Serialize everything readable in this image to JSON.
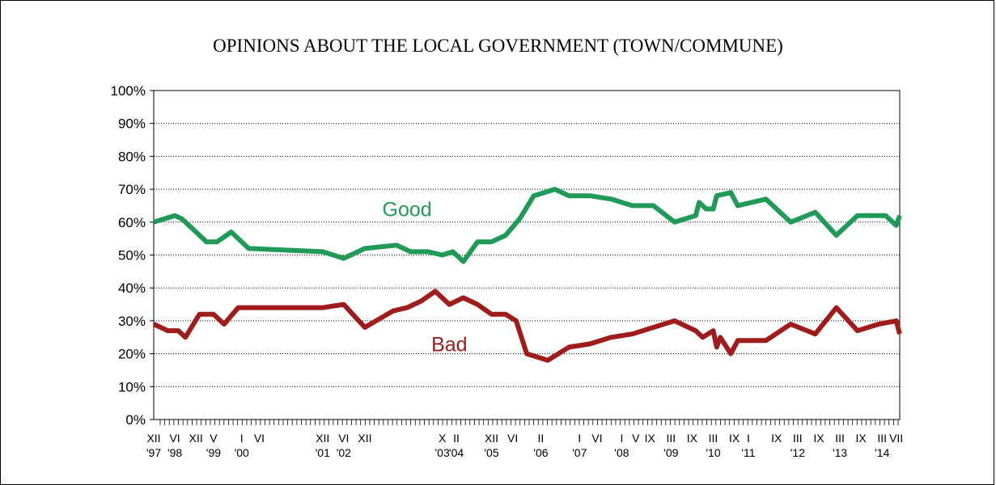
{
  "chart_data": {
    "type": "line",
    "title": "OPINIONS ABOUT THE LOCAL GOVERNMENT (TOWN/COMMUNE)",
    "ylim": [
      0,
      100
    ],
    "y_ticks": [
      "0%",
      "10%",
      "20%",
      "30%",
      "40%",
      "50%",
      "60%",
      "70%",
      "80%",
      "90%",
      "100%"
    ],
    "grid": "horizontal dotted",
    "x_tick_count": 163,
    "x_labels_row1": [
      {
        "t": "XII",
        "i": 0
      },
      {
        "t": "VI",
        "i": 6
      },
      {
        "t": "XII",
        "i": 12
      },
      {
        "t": "V",
        "i": 17
      },
      {
        "t": "I",
        "i": 25
      },
      {
        "t": "VI",
        "i": 30
      },
      {
        "t": "XII",
        "i": 48
      },
      {
        "t": "VI",
        "i": 54
      },
      {
        "t": "XII",
        "i": 60
      },
      {
        "t": "X",
        "i": 82
      },
      {
        "t": "II",
        "i": 86
      },
      {
        "t": "XII",
        "i": 96
      },
      {
        "t": "VI",
        "i": 102
      },
      {
        "t": "II",
        "i": 110
      },
      {
        "t": "I",
        "i": 121
      },
      {
        "t": "VI",
        "i": 126
      },
      {
        "t": "I",
        "i": 133
      },
      {
        "t": "V",
        "i": 137
      },
      {
        "t": "IX",
        "i": 141
      },
      {
        "t": "III",
        "i": 147
      },
      {
        "t": "IX",
        "i": 153
      },
      {
        "t": "III",
        "i": 159
      },
      {
        "t": "IX",
        "i": 165
      },
      {
        "t": "I",
        "i": 169
      },
      {
        "t": "IX",
        "i": 177
      },
      {
        "t": "III",
        "i": 183
      },
      {
        "t": "IX",
        "i": 189
      },
      {
        "t": "III",
        "i": 195
      },
      {
        "t": "IX",
        "i": 201
      },
      {
        "t": "III",
        "i": 207
      },
      {
        "t": "VII",
        "i": 211
      }
    ],
    "x_labels_row2": [
      {
        "t": "'97",
        "i": 0
      },
      {
        "t": "'98",
        "i": 6
      },
      {
        "t": "'99",
        "i": 17
      },
      {
        "t": "'00",
        "i": 25
      },
      {
        "t": "'01",
        "i": 48
      },
      {
        "t": "'02",
        "i": 54
      },
      {
        "t": "'03",
        "i": 82
      },
      {
        "t": "'04",
        "i": 86
      },
      {
        "t": "'05",
        "i": 96
      },
      {
        "t": "'06",
        "i": 110
      },
      {
        "t": "'07",
        "i": 121
      },
      {
        "t": "'08",
        "i": 133
      },
      {
        "t": "'09",
        "i": 147
      },
      {
        "t": "'10",
        "i": 159
      },
      {
        "t": "'11",
        "i": 169
      },
      {
        "t": "'12",
        "i": 183
      },
      {
        "t": "'13",
        "i": 195
      },
      {
        "t": "'14",
        "i": 207
      }
    ],
    "series": [
      {
        "name": "Good",
        "color": "#1f9a57",
        "points": [
          [
            0,
            60
          ],
          [
            6,
            62
          ],
          [
            8,
            61
          ],
          [
            12,
            57
          ],
          [
            15,
            54
          ],
          [
            18,
            54
          ],
          [
            22,
            57
          ],
          [
            27,
            52
          ],
          [
            48,
            51
          ],
          [
            54,
            49
          ],
          [
            60,
            52
          ],
          [
            69,
            53
          ],
          [
            73,
            51
          ],
          [
            78,
            51
          ],
          [
            82,
            50
          ],
          [
            85,
            51
          ],
          [
            88,
            48
          ],
          [
            92,
            54
          ],
          [
            96,
            54
          ],
          [
            100,
            56
          ],
          [
            104,
            61
          ],
          [
            108,
            68
          ],
          [
            114,
            70
          ],
          [
            118,
            68
          ],
          [
            124,
            68
          ],
          [
            130,
            67
          ],
          [
            136,
            65
          ],
          [
            142,
            65
          ],
          [
            148,
            60
          ],
          [
            154,
            62
          ],
          [
            155,
            66
          ],
          [
            157,
            64
          ],
          [
            159,
            64
          ],
          [
            160,
            68
          ],
          [
            164,
            69
          ],
          [
            166,
            65
          ],
          [
            174,
            67
          ],
          [
            181,
            60
          ],
          [
            188,
            63
          ],
          [
            194,
            56
          ],
          [
            200,
            62
          ],
          [
            208,
            62
          ],
          [
            211,
            59
          ],
          [
            212,
            62
          ]
        ]
      },
      {
        "name": "Bad",
        "color": "#a01c1c",
        "points": [
          [
            0,
            29
          ],
          [
            4,
            27
          ],
          [
            7,
            27
          ],
          [
            9,
            25
          ],
          [
            13,
            32
          ],
          [
            17,
            32
          ],
          [
            20,
            29
          ],
          [
            24,
            34
          ],
          [
            48,
            34
          ],
          [
            54,
            35
          ],
          [
            60,
            28
          ],
          [
            68,
            33
          ],
          [
            72,
            34
          ],
          [
            76,
            36
          ],
          [
            80,
            39
          ],
          [
            84,
            35
          ],
          [
            88,
            37
          ],
          [
            92,
            35
          ],
          [
            96,
            32
          ],
          [
            100,
            32
          ],
          [
            103,
            30
          ],
          [
            106,
            20
          ],
          [
            112,
            18
          ],
          [
            118,
            22
          ],
          [
            124,
            23
          ],
          [
            130,
            25
          ],
          [
            136,
            26
          ],
          [
            142,
            28
          ],
          [
            148,
            30
          ],
          [
            154,
            27
          ],
          [
            156,
            25
          ],
          [
            159,
            27
          ],
          [
            160,
            22
          ],
          [
            161,
            25
          ],
          [
            164,
            20
          ],
          [
            166,
            24
          ],
          [
            174,
            24
          ],
          [
            181,
            29
          ],
          [
            188,
            26
          ],
          [
            194,
            34
          ],
          [
            200,
            27
          ],
          [
            206,
            29
          ],
          [
            211,
            30
          ],
          [
            212,
            26
          ]
        ]
      }
    ],
    "annotations": [
      {
        "text": "Good",
        "series": "Good",
        "x": 72,
        "y": 64
      },
      {
        "text": "Bad",
        "series": "Bad",
        "x": 84,
        "y": 23
      }
    ]
  }
}
